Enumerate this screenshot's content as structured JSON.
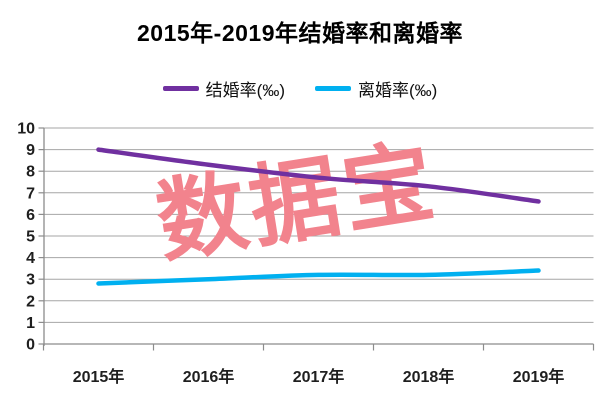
{
  "title": "2015年-2019年结婚率和离婚率",
  "watermark": {
    "text": "数据宝",
    "color": "#F2838D",
    "rotation_deg": -9
  },
  "legend": {
    "items": [
      {
        "label": "结婚率(‰)",
        "color": "#7030A0"
      },
      {
        "label": "离婚率(‰)",
        "color": "#00B0F0"
      }
    ]
  },
  "colors": {
    "marriage_line": "#7030A0",
    "divorce_line": "#00B0F0",
    "gridline": "#A6A6A6",
    "axis": "#8C8C8C",
    "tick_label": "#1F1F1F",
    "title_text": "#000000",
    "watermark": "#F2838D"
  },
  "chart_data": {
    "type": "line",
    "title": "2015年-2019年结婚率和离婚率",
    "categories": [
      "2015年",
      "2016年",
      "2017年",
      "2018年",
      "2019年"
    ],
    "series": [
      {
        "name": "结婚率(‰)",
        "color": "#7030A0",
        "values": [
          9.0,
          8.3,
          7.7,
          7.3,
          6.6
        ]
      },
      {
        "name": "离婚率(‰)",
        "color": "#00B0F0",
        "values": [
          2.8,
          3.0,
          3.2,
          3.2,
          3.4
        ]
      }
    ],
    "xlabel": "",
    "ylabel": "",
    "ylim": [
      0,
      10
    ],
    "ytick_step": 1,
    "grid": true,
    "legend_position": "top",
    "watermark_text": "数据宝"
  }
}
